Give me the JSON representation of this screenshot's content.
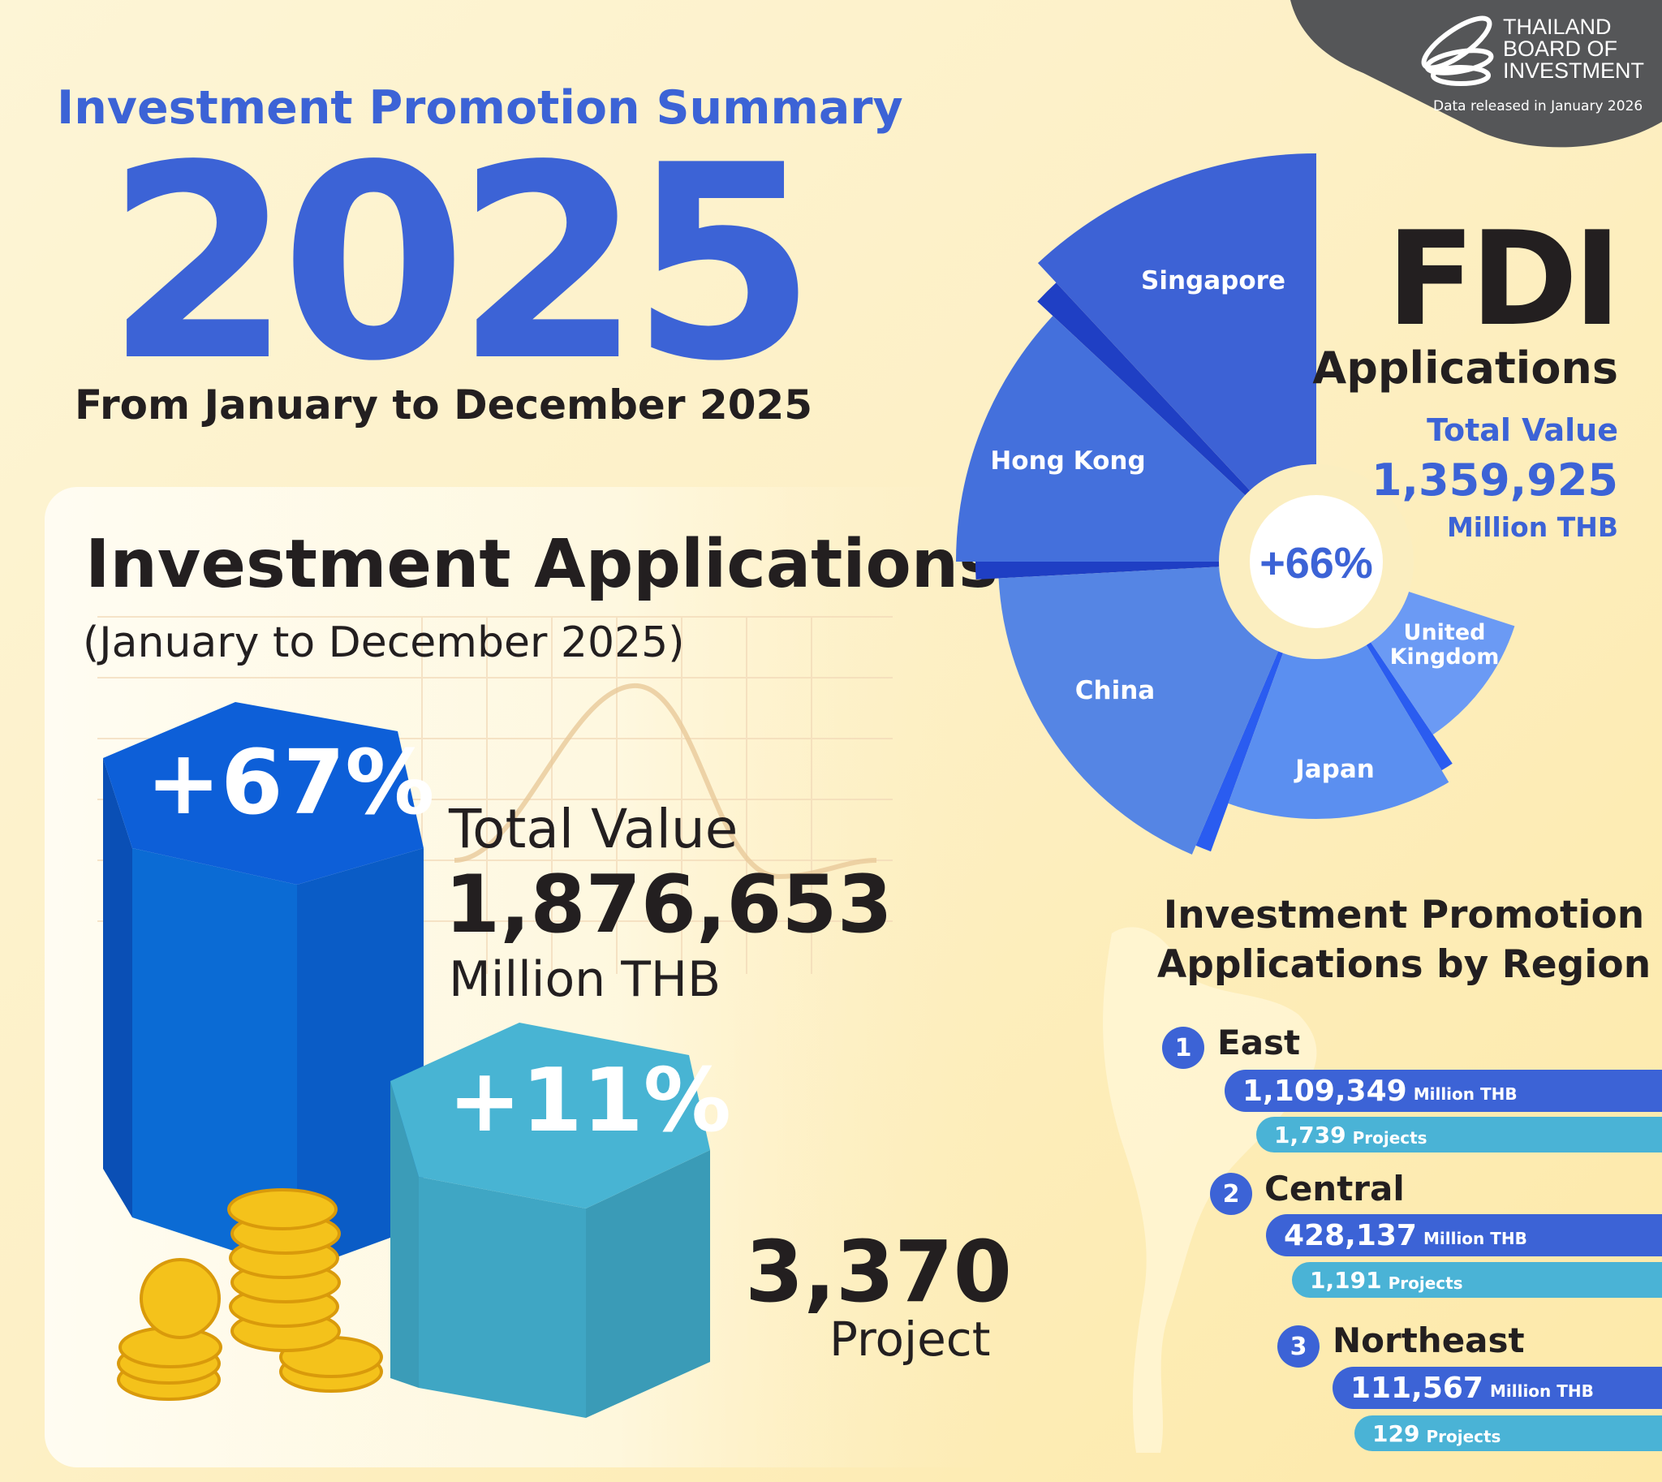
{
  "header": {
    "title": "Investment Promotion Summary",
    "year": "2025",
    "period": "From January to December 2025"
  },
  "logo": {
    "lines": [
      "THAILAND",
      "BOARD OF",
      "INVESTMENT"
    ],
    "release_note": "Data released in January 2026"
  },
  "applications": {
    "title": "Investment Applications",
    "subtitle": "(January to December 2025)",
    "value_growth": "+67%",
    "value_label": "Total Value",
    "value": "1,876,653",
    "value_unit": "Million THB",
    "project_growth": "+11%",
    "projects": "3,370",
    "projects_unit": "Project"
  },
  "fdi": {
    "title": "FDI",
    "subtitle": "Applications",
    "total_label": "Total Value",
    "total_value": "1,359,925",
    "total_unit": "Million THB",
    "growth": "+66%"
  },
  "chart_data": {
    "type": "pie",
    "categories": [
      "Singapore",
      "Hong Kong",
      "China",
      "Japan",
      "United Kingdom"
    ],
    "labels_display": [
      "Singapore",
      "Hong Kong",
      "China",
      "Japan",
      "United\nKingdom"
    ],
    "center_label": "+66%",
    "colors": [
      "#3d62d5",
      "#4470dc",
      "#5585e4",
      "#5b8ff0",
      "#6b9af4"
    ],
    "legend": "none"
  },
  "regions": {
    "title_line1": "Investment Promotion",
    "title_line2": "Applications by Region",
    "items": [
      {
        "rank": "1",
        "name": "East",
        "value": "1,109,349",
        "value_unit": "Million THB",
        "projects": "1,739",
        "projects_unit": "Projects"
      },
      {
        "rank": "2",
        "name": "Central",
        "value": "428,137",
        "value_unit": "Million THB",
        "projects": "1,191",
        "projects_unit": "Projects"
      },
      {
        "rank": "3",
        "name": "Northeast",
        "value": "111,567",
        "value_unit": "Million THB",
        "projects": "129",
        "projects_unit": "Projects"
      }
    ]
  },
  "colors": {
    "brand_blue": "#3c63d6",
    "teal": "#4ab3d6",
    "background": "#fdf0c6",
    "logo_background": "#555658"
  }
}
